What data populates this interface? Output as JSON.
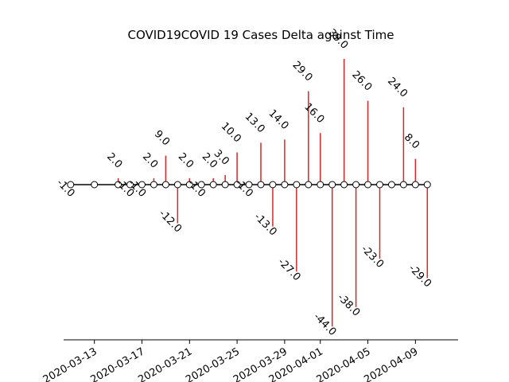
{
  "chart_data": {
    "type": "stem",
    "title": "COVID19COVID 19 Cases Delta against Time",
    "xlabel": "",
    "ylabel": "",
    "grid": false,
    "legend": "none",
    "colors": {
      "stem": "#d62728",
      "baseline": "#000000",
      "marker_face": "#ffffff",
      "marker_edge": "#000000"
    },
    "x_tick_labels": [
      "2020-03-13",
      "2020-03-17",
      "2020-03-21",
      "2020-03-25",
      "2020-03-29",
      "2020-04-01",
      "2020-04-05",
      "2020-04-09"
    ],
    "x_tick_dates": [
      "2020-03-13",
      "2020-03-17",
      "2020-03-21",
      "2020-03-25",
      "2020-03-29",
      "2020-04-01",
      "2020-04-05",
      "2020-04-09"
    ],
    "points": [
      {
        "date": "2020-03-11",
        "value": -1.0,
        "label": "-1.0"
      },
      {
        "date": "2020-03-13",
        "value": 0,
        "label": ""
      },
      {
        "date": "2020-03-15",
        "value": 2.0,
        "label": "2.0"
      },
      {
        "date": "2020-03-16",
        "value": -1.0,
        "label": "-1.0"
      },
      {
        "date": "2020-03-17",
        "value": -1.0,
        "label": "-1.0"
      },
      {
        "date": "2020-03-18",
        "value": 2.0,
        "label": "2.0"
      },
      {
        "date": "2020-03-19",
        "value": 9.0,
        "label": "9.0"
      },
      {
        "date": "2020-03-20",
        "value": -12.0,
        "label": "-12.0"
      },
      {
        "date": "2020-03-21",
        "value": 2.0,
        "label": "2.0"
      },
      {
        "date": "2020-03-22",
        "value": -1.0,
        "label": "-1.0"
      },
      {
        "date": "2020-03-23",
        "value": 2.0,
        "label": "2.0"
      },
      {
        "date": "2020-03-24",
        "value": 3.0,
        "label": "3.0"
      },
      {
        "date": "2020-03-25",
        "value": 10.0,
        "label": "10.0"
      },
      {
        "date": "2020-03-26",
        "value": -1.0,
        "label": "-1.0"
      },
      {
        "date": "2020-03-27",
        "value": 13.0,
        "label": "13.0"
      },
      {
        "date": "2020-03-28",
        "value": -13.0,
        "label": "-13.0"
      },
      {
        "date": "2020-03-29",
        "value": 14.0,
        "label": "14.0"
      },
      {
        "date": "2020-03-30",
        "value": -27.0,
        "label": "-27.0"
      },
      {
        "date": "2020-03-31",
        "value": 29.0,
        "label": "29.0"
      },
      {
        "date": "2020-04-01",
        "value": 16.0,
        "label": "16.0"
      },
      {
        "date": "2020-04-02",
        "value": -44.0,
        "label": "-44.0"
      },
      {
        "date": "2020-04-03",
        "value": 39.0,
        "label": "39.0"
      },
      {
        "date": "2020-04-04",
        "value": -38.0,
        "label": "-38.0"
      },
      {
        "date": "2020-04-05",
        "value": 26.0,
        "label": "26.0"
      },
      {
        "date": "2020-04-06",
        "value": -23.0,
        "label": "-23.0"
      },
      {
        "date": "2020-04-07",
        "value": 0,
        "label": ""
      },
      {
        "date": "2020-04-08",
        "value": 24.0,
        "label": "24.0"
      },
      {
        "date": "2020-04-09",
        "value": 8.0,
        "label": "8.0"
      },
      {
        "date": "2020-04-10",
        "value": -29.0,
        "label": "-29.0"
      }
    ]
  }
}
